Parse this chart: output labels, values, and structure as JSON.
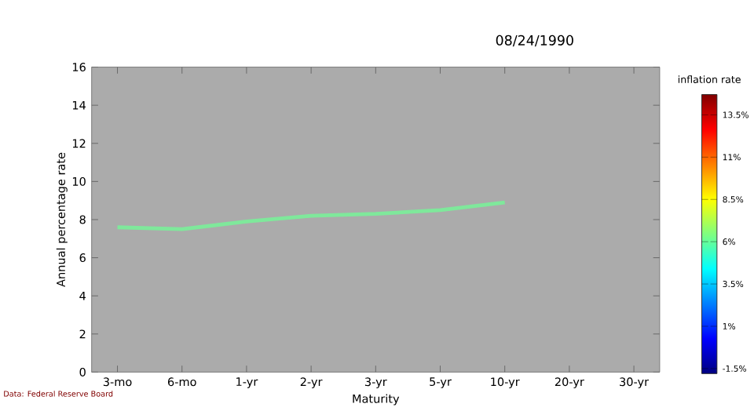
{
  "chart_data": {
    "type": "line",
    "title": "08/24/1990",
    "xlabel": "Maturity",
    "ylabel": "Annual percentage rate",
    "categories": [
      "3-mo",
      "6-mo",
      "1-yr",
      "2-yr",
      "3-yr",
      "5-yr",
      "10-yr",
      "20-yr",
      "30-yr"
    ],
    "series": [
      {
        "color": "#7fe89b",
        "values": [
          7.6,
          7.5,
          7.9,
          8.2,
          8.3,
          8.5,
          8.9,
          null,
          null
        ]
      }
    ],
    "ylim": [
      0,
      16
    ],
    "yticks": [
      0,
      2,
      4,
      6,
      8,
      10,
      12,
      14,
      16
    ],
    "clabel": "inflation rate",
    "clim": [
      -1.8,
      14.7
    ],
    "cticks": [
      {
        "value": -1.5,
        "label": "-1.5%"
      },
      {
        "value": 1,
        "label": "1%"
      },
      {
        "value": 3.5,
        "label": "3.5%"
      },
      {
        "value": 6,
        "label": "6%"
      },
      {
        "value": 8.5,
        "label": "8.5%"
      },
      {
        "value": 11,
        "label": "11%"
      },
      {
        "value": 13.5,
        "label": "13.5%"
      }
    ],
    "grid": false,
    "marker": "none",
    "line_style": "solid",
    "annotations": [
      "Data: Federal Reserve Board"
    ]
  }
}
